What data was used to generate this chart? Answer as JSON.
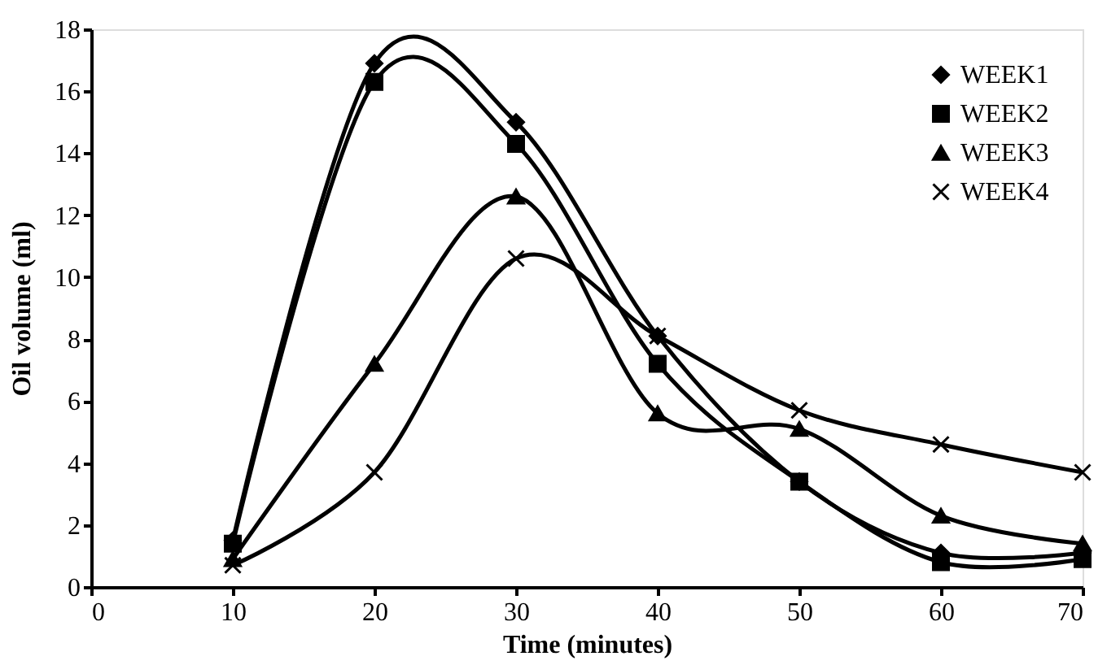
{
  "chart_data": {
    "type": "line",
    "xlabel": "Time (minutes)",
    "ylabel": "Oil volume (ml)",
    "x": [
      10,
      20,
      30,
      40,
      50,
      60,
      70
    ],
    "xlim": [
      0,
      70
    ],
    "xticks": [
      0,
      10,
      20,
      30,
      40,
      50,
      60,
      70
    ],
    "ylim": [
      0,
      18
    ],
    "yticks": [
      0,
      2,
      4,
      6,
      8,
      10,
      12,
      14,
      16,
      18
    ],
    "grid": false,
    "legend": "top right",
    "line_style": "solid",
    "series": [
      {
        "name": "WEEK1",
        "color": "#000000",
        "marker": "diamond",
        "values": [
          1.5,
          16.9,
          15.0,
          8.1,
          3.4,
          1.1,
          1.1
        ]
      },
      {
        "name": "WEEK2",
        "color": "#000000",
        "marker": "square",
        "values": [
          1.4,
          16.3,
          14.3,
          7.2,
          3.4,
          0.8,
          0.9
        ]
      },
      {
        "name": "WEEK3",
        "color": "#000000",
        "marker": "triangle",
        "values": [
          0.9,
          7.2,
          12.6,
          5.6,
          5.1,
          2.3,
          1.4
        ]
      },
      {
        "name": "WEEK4",
        "color": "#000000",
        "marker": "cross",
        "values": [
          0.7,
          3.7,
          10.6,
          8.1,
          5.7,
          4.6,
          3.7
        ]
      }
    ]
  }
}
